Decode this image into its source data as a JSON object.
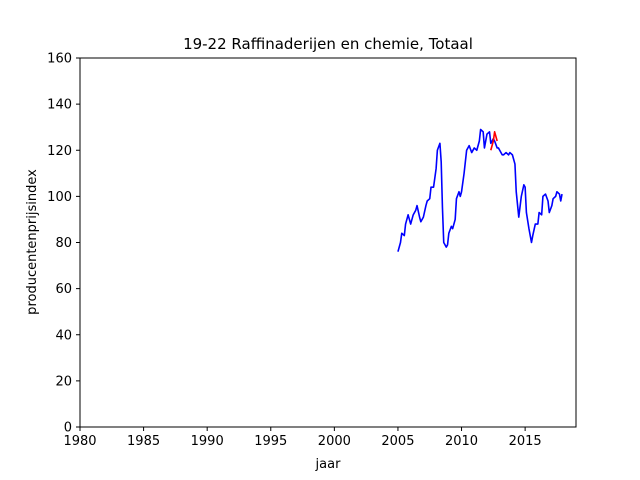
{
  "chart_data": {
    "type": "line",
    "title": "19-22 Raffinaderijen en chemie, Totaal",
    "xlabel": "jaar",
    "ylabel": "producentenprijsindex",
    "xlim": [
      1980,
      2019
    ],
    "ylim": [
      0,
      160
    ],
    "xticks": [
      1980,
      1985,
      1990,
      1995,
      2000,
      2005,
      2010,
      2015
    ],
    "yticks": [
      0,
      20,
      40,
      60,
      80,
      100,
      120,
      140,
      160
    ],
    "grid": false,
    "colors": {
      "main": "#0000ff",
      "highlight": "#ff0000"
    },
    "series": [
      {
        "color": "#0000ff",
        "x": [
          2005.0,
          2005.2,
          2005.3,
          2005.5,
          2005.6,
          2005.8,
          2005.9,
          2006.0,
          2006.2,
          2006.4,
          2006.5,
          2006.7,
          2006.8,
          2007.0,
          2007.2,
          2007.3,
          2007.5,
          2007.6,
          2007.8,
          2008.0,
          2008.1,
          2008.3,
          2008.4,
          2008.5,
          2008.6,
          2008.8,
          2008.9,
          2009.0,
          2009.2,
          2009.3,
          2009.5,
          2009.6,
          2009.8,
          2009.9,
          2010.0,
          2010.2,
          2010.4,
          2010.6,
          2010.8,
          2011.0,
          2011.2,
          2011.4,
          2011.5,
          2011.7,
          2011.8,
          2012.0,
          2012.2,
          2012.3,
          2012.5,
          2012.6,
          2012.8,
          2012.9,
          2013.0,
          2013.2,
          2013.3,
          2013.5,
          2013.7,
          2013.8,
          2014.0,
          2014.2,
          2014.3,
          2014.5,
          2014.7,
          2014.9,
          2015.0,
          2015.1,
          2015.3,
          2015.5,
          2015.6,
          2015.8,
          2016.0,
          2016.1,
          2016.3,
          2016.4,
          2016.6,
          2016.8,
          2016.9,
          2017.1,
          2017.2,
          2017.4,
          2017.5,
          2017.7,
          2017.8,
          2017.9
        ],
        "y": [
          76,
          80,
          84,
          83,
          88,
          92,
          90,
          88,
          92,
          94,
          96,
          91,
          89,
          91,
          96,
          98,
          99,
          104,
          104,
          112,
          120,
          123,
          115,
          95,
          80,
          78,
          79,
          84,
          87,
          86,
          90,
          99,
          102,
          100,
          102,
          110,
          120,
          122,
          119,
          121,
          120,
          124,
          129,
          128,
          121,
          127,
          128,
          123,
          125,
          124,
          121,
          121,
          120,
          118,
          118,
          119,
          118,
          119,
          118,
          114,
          102,
          91,
          100,
          105,
          104,
          93,
          86,
          80,
          83,
          88,
          88,
          93,
          92,
          100,
          101,
          98,
          93,
          96,
          99,
          100,
          102,
          101,
          98,
          101
        ]
      },
      {
        "color": "#ff0000",
        "x": [
          2012.3,
          2012.5,
          2012.6,
          2012.8
        ],
        "y": [
          120,
          124,
          128,
          124
        ]
      }
    ]
  }
}
